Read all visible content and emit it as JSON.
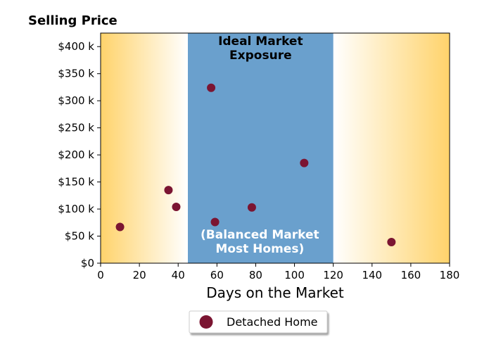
{
  "chart_data": {
    "type": "scatter",
    "title": "Selling Price",
    "xlabel": "Days on the Market",
    "ylabel": "",
    "xlim": [
      0,
      180
    ],
    "ylim": [
      0,
      425000
    ],
    "x_ticks": [
      0,
      20,
      40,
      60,
      80,
      100,
      120,
      140,
      160,
      180
    ],
    "x_tick_labels": [
      "0",
      "20",
      "40",
      "60",
      "80",
      "100",
      "120",
      "140",
      "160",
      "180"
    ],
    "y_ticks": [
      0,
      50000,
      100000,
      150000,
      200000,
      250000,
      300000,
      350000,
      400000
    ],
    "y_tick_labels": [
      "$0",
      "$50 k",
      "$100 k",
      "$150 k",
      "$200 k",
      "$250 k",
      "$300 k",
      "$350 k",
      "$400 k"
    ],
    "grid": false,
    "legend_position": "bottom-center",
    "series": [
      {
        "name": "Detached Home",
        "color": "#7b1532",
        "points": [
          {
            "x": 10,
            "y": 67000
          },
          {
            "x": 35,
            "y": 135000
          },
          {
            "x": 39,
            "y": 104000
          },
          {
            "x": 57,
            "y": 324000
          },
          {
            "x": 59,
            "y": 76000
          },
          {
            "x": 78,
            "y": 103000
          },
          {
            "x": 105,
            "y": 185000
          },
          {
            "x": 150,
            "y": 39000
          }
        ]
      }
    ],
    "bands": [
      {
        "type": "gradient",
        "x_range": [
          0,
          45
        ],
        "color": "#ffd36b",
        "fade": "right"
      },
      {
        "type": "solid",
        "x_range": [
          45,
          120
        ],
        "color": "#6aa0cd"
      },
      {
        "type": "gradient",
        "x_range": [
          120,
          180
        ],
        "color": "#ffd36b",
        "fade": "left"
      }
    ],
    "annotations": [
      {
        "lines": [
          "Ideal Market",
          "Exposure"
        ],
        "color": "#000000"
      },
      {
        "lines": [
          "(Balanced Market",
          "Most Homes)"
        ],
        "color": "#ffffff"
      }
    ]
  }
}
